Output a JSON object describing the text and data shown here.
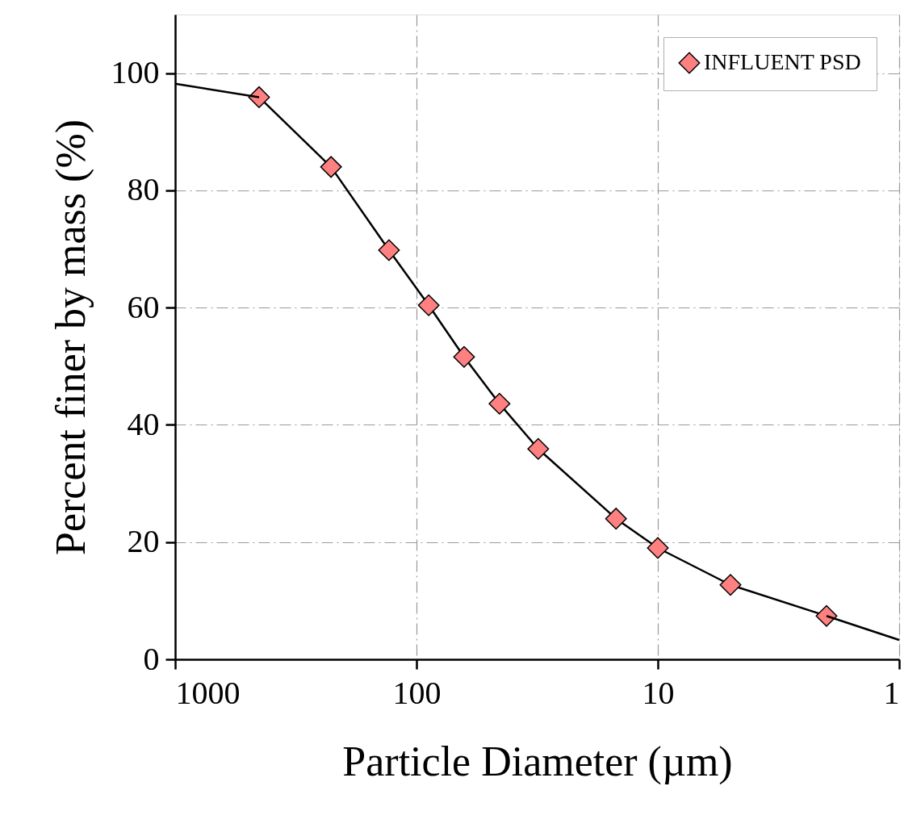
{
  "chart_data": {
    "type": "line",
    "xlabel": "Particle Diameter (µm)",
    "ylabel": "Percent finer by mass (%)",
    "log": "x",
    "xlim": [
      1000,
      1
    ],
    "xticks": [
      1000,
      100,
      10,
      1
    ],
    "ylim": [
      0,
      110
    ],
    "yticks": [
      0,
      20,
      40,
      60,
      80,
      100
    ],
    "grid": true,
    "legend": "top right",
    "marker": "diamond",
    "series": [
      {
        "name": "INFLUENT PSD",
        "color": "#ff8080",
        "x": [
          449,
          226,
          130,
          89,
          63.5,
          45.3,
          31.3,
          14.9,
          10,
          5,
          2
        ],
        "values": [
          95.9,
          84.0,
          69.8,
          60.4,
          51.6,
          43.6,
          35.9,
          24.0,
          19.0,
          12.7,
          7.4
        ]
      },
      {
        "marker": "none",
        "x": [
          1000,
          449
        ],
        "values": [
          98.2,
          95.9
        ]
      },
      {
        "marker": "none",
        "x": [
          2,
          1
        ],
        "values": [
          7.4,
          3.3
        ]
      }
    ]
  }
}
